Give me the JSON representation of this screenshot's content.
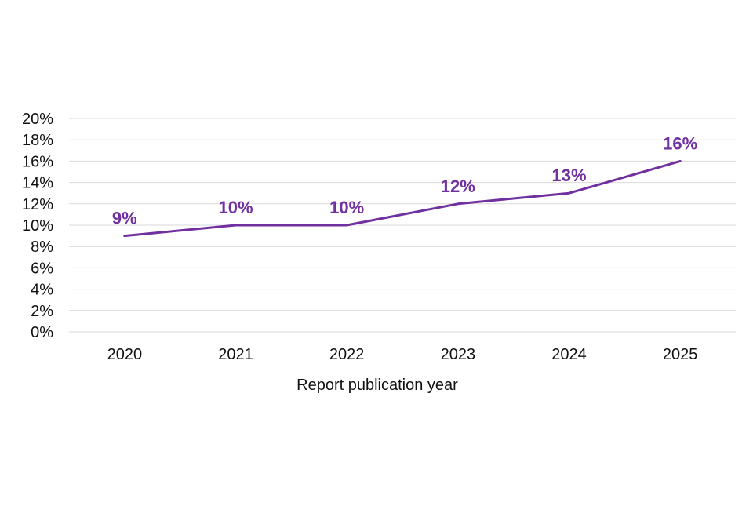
{
  "chart_data": {
    "type": "line",
    "title": "",
    "xlabel": "Report publication year",
    "ylabel": "",
    "categories": [
      "2020",
      "2021",
      "2022",
      "2023",
      "2024",
      "2025"
    ],
    "series": [
      {
        "values": [
          9,
          10,
          10,
          12,
          13,
          16
        ],
        "data_labels": [
          "9%",
          "10%",
          "10%",
          "12%",
          "13%",
          "16%"
        ],
        "color": "#7030a0"
      }
    ],
    "ylim": [
      0,
      20
    ],
    "y_ticks": [
      0,
      2,
      4,
      6,
      8,
      10,
      12,
      14,
      16,
      18,
      20
    ],
    "y_tick_labels": [
      "0%",
      "2%",
      "4%",
      "6%",
      "8%",
      "10%",
      "12%",
      "14%",
      "16%",
      "18%",
      "20%"
    ],
    "grid": true,
    "legend": false
  }
}
